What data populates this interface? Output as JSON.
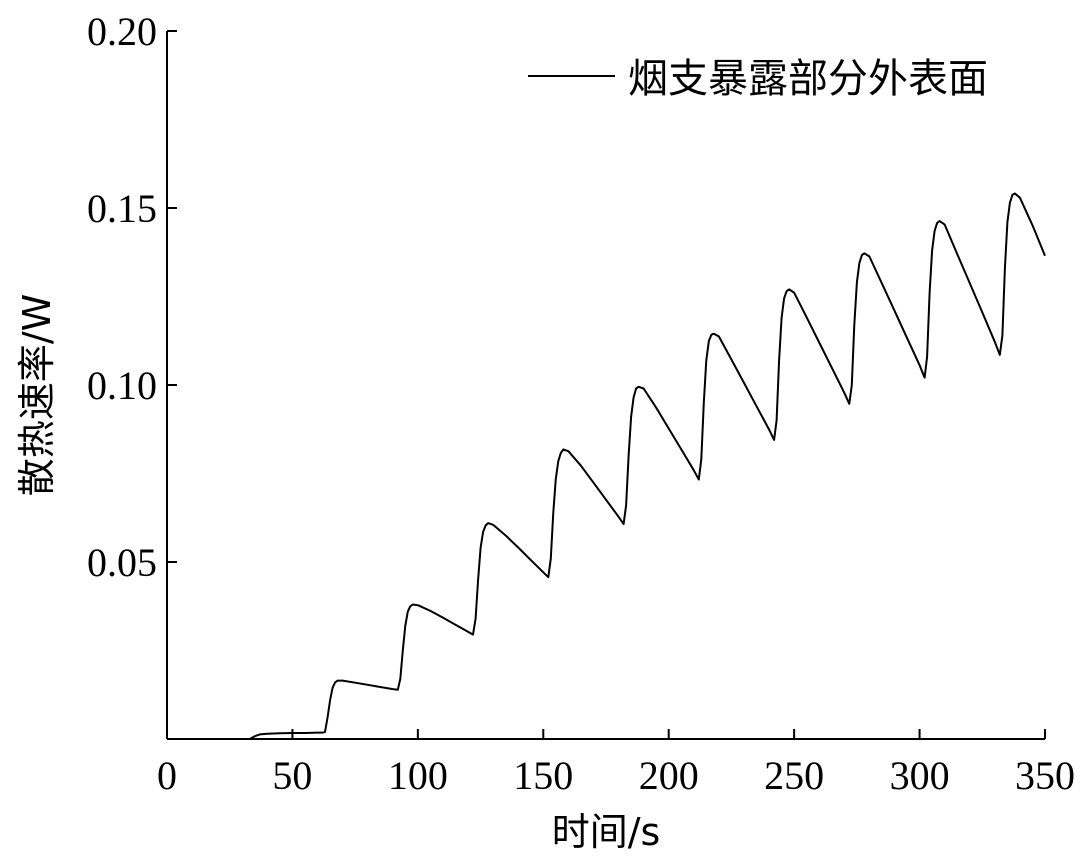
{
  "chart_data": {
    "type": "line",
    "title": "",
    "xlabel": "时间/s",
    "ylabel": "散热速率/W",
    "xlim": [
      0,
      350
    ],
    "ylim": [
      0,
      0.2
    ],
    "x_ticks": [
      0,
      50,
      100,
      150,
      200,
      250,
      300,
      350
    ],
    "x_tick_labels": [
      "0",
      "50",
      "100",
      "150",
      "200",
      "250",
      "300",
      "350"
    ],
    "y_ticks": [
      0.05,
      0.1,
      0.15,
      0.2
    ],
    "y_tick_labels": [
      "0.05",
      "0.10",
      "0.15",
      "0.20"
    ],
    "grid": false,
    "legend_position": "top-right",
    "series": [
      {
        "name": "烟支暴露部分外表面",
        "color": "#000000",
        "x": [
          0,
          33,
          35,
          37,
          40,
          45,
          50,
          55,
          60,
          62,
          63,
          64,
          65,
          66,
          67,
          68,
          70,
          75,
          80,
          85,
          90,
          92,
          93,
          94,
          95,
          96,
          97,
          98,
          100,
          105,
          110,
          115,
          120,
          122,
          123,
          124,
          125,
          126,
          127,
          128,
          130,
          135,
          140,
          145,
          150,
          152,
          153,
          154,
          155,
          156,
          157,
          158,
          160,
          165,
          170,
          175,
          180,
          182,
          183,
          184,
          185,
          186,
          187,
          188,
          190,
          195,
          200,
          205,
          210,
          212,
          213,
          214,
          215,
          216,
          217,
          218,
          220,
          225,
          230,
          235,
          240,
          242,
          243,
          244,
          245,
          246,
          247,
          248,
          250,
          255,
          260,
          265,
          270,
          272,
          273,
          274,
          275,
          276,
          277,
          278,
          280,
          285,
          290,
          295,
          300,
          302,
          303,
          304,
          305,
          306,
          307,
          308,
          310,
          315,
          320,
          325,
          330,
          332,
          333,
          334,
          335,
          336,
          337,
          338,
          340,
          345,
          350
        ],
        "values": [
          0,
          0,
          0.0008,
          0.0013,
          0.0015,
          0.0016,
          0.0017,
          0.0017,
          0.0018,
          0.0018,
          0.002,
          0.006,
          0.011,
          0.0145,
          0.016,
          0.0165,
          0.0165,
          0.0159,
          0.0153,
          0.0147,
          0.0141,
          0.0139,
          0.017,
          0.025,
          0.032,
          0.036,
          0.0375,
          0.038,
          0.0378,
          0.0362,
          0.0343,
          0.0323,
          0.0303,
          0.0295,
          0.034,
          0.045,
          0.054,
          0.0585,
          0.0603,
          0.061,
          0.0605,
          0.0575,
          0.0541,
          0.0506,
          0.0471,
          0.0457,
          0.051,
          0.064,
          0.0735,
          0.0785,
          0.0808,
          0.0818,
          0.0813,
          0.0772,
          0.0724,
          0.0676,
          0.0628,
          0.0607,
          0.066,
          0.08,
          0.091,
          0.0965,
          0.099,
          0.0995,
          0.099,
          0.0936,
          0.0877,
          0.0818,
          0.0759,
          0.0733,
          0.079,
          0.095,
          0.107,
          0.1125,
          0.1142,
          0.1145,
          0.1137,
          0.1072,
          0.1006,
          0.094,
          0.0874,
          0.0845,
          0.09,
          0.107,
          0.119,
          0.1245,
          0.1265,
          0.127,
          0.1261,
          0.1191,
          0.112,
          0.1049,
          0.0978,
          0.0947,
          0.1,
          0.117,
          0.129,
          0.1345,
          0.1367,
          0.1372,
          0.1363,
          0.1287,
          0.121,
          0.1133,
          0.1056,
          0.1021,
          0.108,
          0.126,
          0.138,
          0.1435,
          0.1458,
          0.1463,
          0.1453,
          0.137,
          0.1288,
          0.1205,
          0.1122,
          0.1085,
          0.114,
          0.133,
          0.146,
          0.1515,
          0.1537,
          0.1541,
          0.1529,
          0.1451,
          0.1365
        ]
      }
    ]
  }
}
